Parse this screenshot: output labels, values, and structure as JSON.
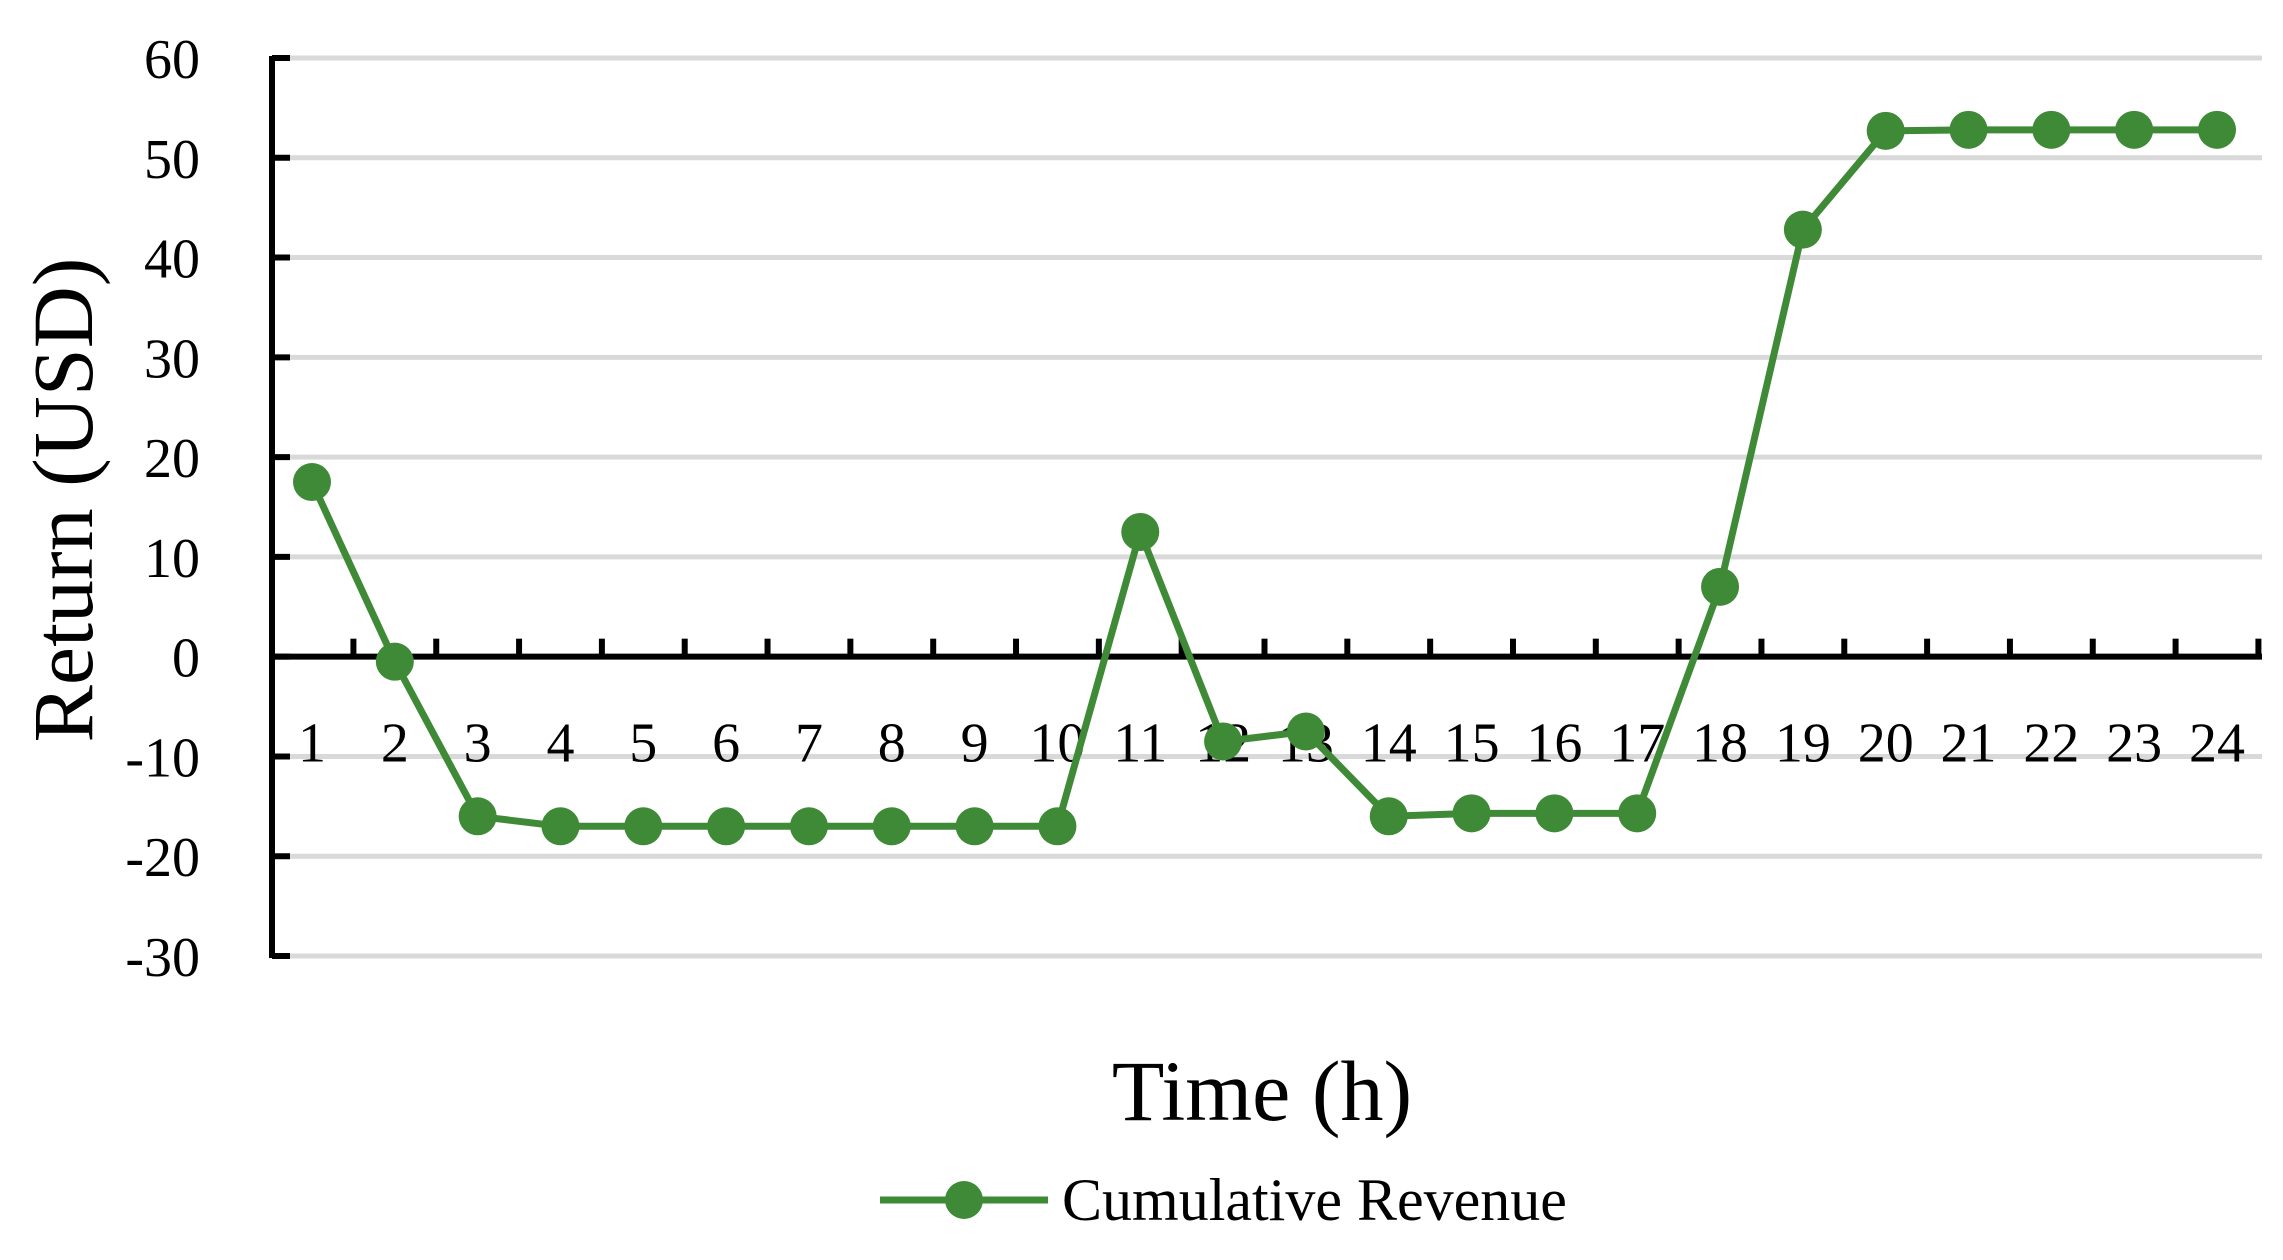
{
  "chart_data": {
    "type": "line",
    "title": "",
    "xlabel": "Time (h)",
    "ylabel": "Return (USD)",
    "ylim": [
      -30,
      60
    ],
    "yticks": [
      -30,
      -20,
      -10,
      0,
      10,
      20,
      30,
      40,
      50,
      60
    ],
    "grid": true,
    "legend_position": "bottom",
    "categories": [
      "1",
      "2",
      "3",
      "4",
      "5",
      "6",
      "7",
      "8",
      "9",
      "10",
      "11",
      "12",
      "13",
      "14",
      "15",
      "16",
      "17",
      "18",
      "19",
      "20",
      "21",
      "22",
      "23",
      "24"
    ],
    "series": [
      {
        "name": "Cumulative Revenue",
        "color": "#3f8a37",
        "values": [
          17.5,
          -0.5,
          -16,
          -17,
          -17,
          -17,
          -17,
          -17,
          -17,
          -17,
          12.5,
          -8.5,
          -7.5,
          -16,
          -15.7,
          -15.7,
          -15.7,
          7,
          42.8,
          52.7,
          52.8,
          52.8,
          52.8,
          52.8
        ]
      }
    ]
  }
}
